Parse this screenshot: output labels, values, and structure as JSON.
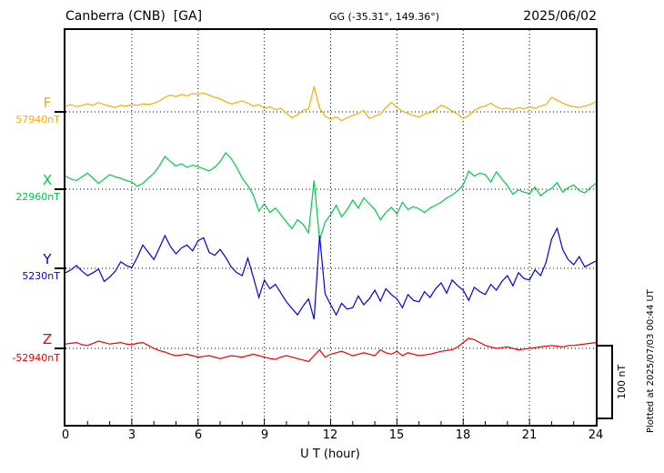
{
  "header": {
    "station": "Canberra (CNB)  [GA]",
    "coords": "GG (-35.31°, 149.36°)",
    "date": "2025/06/02"
  },
  "axis": {
    "x_ticks": [
      "0",
      "3",
      "6",
      "9",
      "12",
      "15",
      "18",
      "21",
      "24"
    ],
    "x_label": "U T (hour)"
  },
  "scale_bar": {
    "label": "100 nT"
  },
  "footer_note": "Plotted at 2025/07/03 00:44 UT",
  "chart_data": {
    "type": "line",
    "title": "Canberra (CNB) [GA] magnetogram 2025/06/02",
    "x_unit": "hour",
    "x_range": [
      0,
      24
    ],
    "x_step_hours": 0.25,
    "grid_hours": [
      3,
      6,
      9,
      12,
      15,
      18,
      21
    ],
    "scale_nT_per_div": 100,
    "series": [
      {
        "name": "F",
        "baseline_label": "57940nT",
        "color": "#ffaa00",
        "offsets_nT": [
          8,
          10,
          7,
          9,
          11,
          9,
          13,
          10,
          8,
          6,
          9,
          8,
          10,
          9,
          11,
          10,
          12,
          15,
          20,
          23,
          21,
          24,
          22,
          25,
          24,
          26,
          23,
          20,
          18,
          14,
          11,
          13,
          15,
          12,
          8,
          10,
          5,
          7,
          3,
          5,
          -2,
          -8,
          -4,
          2,
          4,
          35,
          5,
          -6,
          -10,
          -7,
          -12,
          -8,
          -5,
          -2,
          2,
          -9,
          -6,
          -3,
          6,
          13,
          6,
          1,
          -2,
          -5,
          -7,
          -3,
          -1,
          3,
          9,
          6,
          1,
          -3,
          -9,
          -5,
          2,
          6,
          8,
          12,
          7,
          4,
          5,
          3,
          6,
          4,
          7,
          5,
          8,
          10,
          20,
          16,
          12,
          9,
          7,
          6,
          8,
          10,
          14
        ]
      },
      {
        "name": "X",
        "baseline_label": "22960nT",
        "color": "#00cc44",
        "offsets_nT": [
          18,
          14,
          12,
          17,
          22,
          15,
          8,
          14,
          20,
          17,
          15,
          12,
          10,
          4,
          8,
          15,
          22,
          32,
          45,
          38,
          32,
          35,
          30,
          33,
          31,
          28,
          25,
          30,
          38,
          50,
          42,
          30,
          15,
          5,
          -8,
          -30,
          -20,
          -32,
          -26,
          -35,
          -45,
          -54,
          -42,
          -48,
          -60,
          12,
          -70,
          -45,
          -35,
          -22,
          -38,
          -28,
          -15,
          -26,
          -12,
          -20,
          -28,
          -42,
          -32,
          -25,
          -34,
          -18,
          -28,
          -24,
          -27,
          -32,
          -26,
          -22,
          -18,
          -12,
          -8,
          -2,
          6,
          25,
          18,
          22,
          20,
          10,
          24,
          14,
          5,
          -7,
          -1,
          -4,
          -6,
          3,
          -9,
          -3,
          1,
          9,
          -4,
          2,
          6,
          -2,
          -5,
          2,
          8
        ]
      },
      {
        "name": "Y",
        "baseline_label": "5230nT",
        "color": "#0000e6",
        "offsets_nT": [
          -6,
          -2,
          4,
          -4,
          -10,
          -6,
          -1,
          -18,
          -12,
          -4,
          9,
          4,
          1,
          15,
          32,
          22,
          12,
          28,
          45,
          30,
          20,
          28,
          32,
          24,
          38,
          42,
          22,
          18,
          26,
          15,
          2,
          -6,
          -10,
          14,
          -12,
          -40,
          -16,
          -28,
          -22,
          -34,
          -46,
          -55,
          -64,
          -52,
          -42,
          -70,
          45,
          -35,
          -50,
          -64,
          -48,
          -56,
          -54,
          -38,
          -50,
          -42,
          -30,
          -45,
          -28,
          -36,
          -42,
          -54,
          -36,
          -44,
          -46,
          -32,
          -40,
          -28,
          -20,
          -34,
          -16,
          -24,
          -30,
          -44,
          -26,
          -32,
          -36,
          -22,
          -30,
          -18,
          -10,
          -24,
          -6,
          -14,
          -16,
          -2,
          -10,
          8,
          40,
          55,
          26,
          12,
          5,
          16,
          2,
          6,
          10
        ]
      },
      {
        "name": "Z",
        "baseline_label": "-52940nT",
        "color": "#ee0000",
        "offsets_nT": [
          6,
          7,
          8,
          5,
          4,
          7,
          10,
          8,
          6,
          7,
          8,
          6,
          5,
          7,
          8,
          4,
          0,
          -3,
          -5,
          -8,
          -10,
          -9,
          -8,
          -10,
          -12,
          -11,
          -10,
          -12,
          -14,
          -12,
          -10,
          -11,
          -12,
          -10,
          -8,
          -10,
          -12,
          -14,
          -15,
          -12,
          -10,
          -12,
          -14,
          -16,
          -18,
          -10,
          -2,
          -12,
          -8,
          -6,
          -4,
          -7,
          -10,
          -8,
          -6,
          -8,
          -10,
          -2,
          -6,
          -8,
          -4,
          -10,
          -6,
          -8,
          -10,
          -9,
          -8,
          -6,
          -4,
          -3,
          -2,
          2,
          8,
          14,
          12,
          8,
          4,
          2,
          0,
          1,
          2,
          0,
          -2,
          -1,
          0,
          1,
          2,
          3,
          4,
          3,
          2,
          4,
          4,
          5,
          6,
          7,
          8
        ]
      }
    ]
  }
}
